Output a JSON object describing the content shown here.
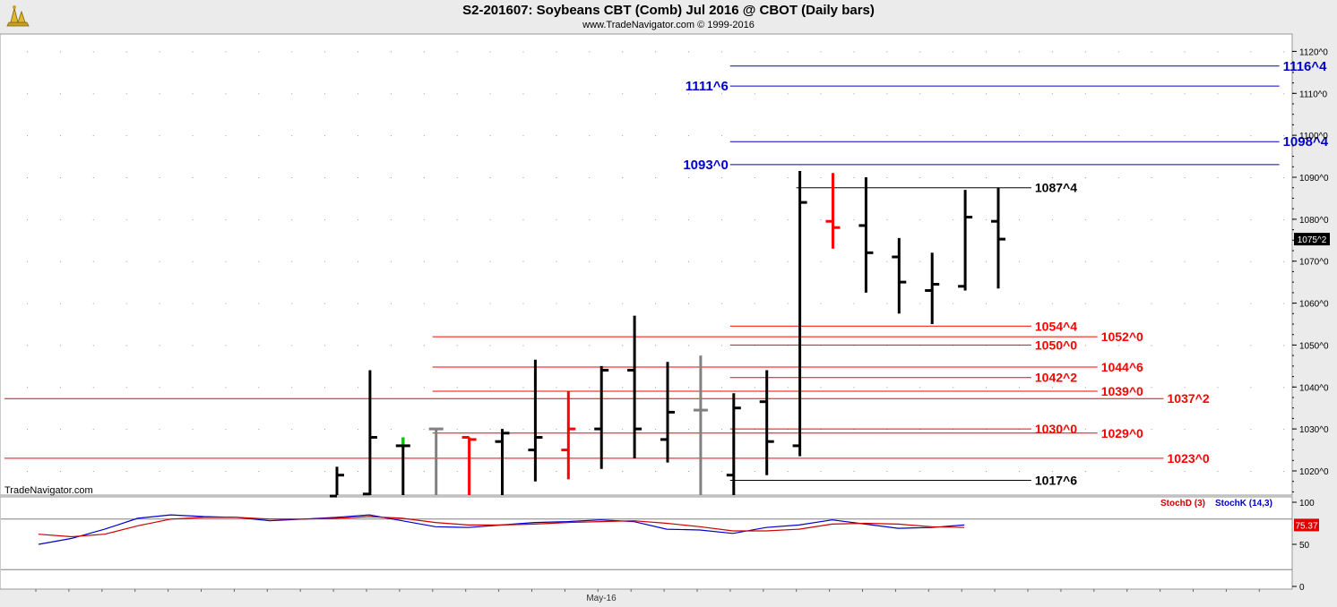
{
  "header": {
    "title": "S2-201607:  Soybeans CBT (Comb) Jul 2016 @ CBOT  (Daily bars)",
    "subtitle": "www.TradeNavigator.com © 1999-2016"
  },
  "watermark": "TradeNavigator.com",
  "colors": {
    "up": "#000000",
    "down": "#ff0000",
    "neutral": "#808080",
    "blue": "#0000cc",
    "red": "#ff0000",
    "black": "#000000",
    "stochK": "#0000cc",
    "stochD": "#cc0000"
  },
  "chart_data": [
    {
      "type": "ohlc",
      "ylim": [
        1012,
        1123
      ],
      "y_ticks": [
        1020,
        1030,
        1040,
        1050,
        1060,
        1070,
        1080,
        1090,
        1100,
        1110,
        1120
      ],
      "y_tick_labels": [
        "1020^0",
        "1030^0",
        "1040^0",
        "1050^0",
        "1060^0",
        "1070^0",
        "1080^0",
        "1090^0",
        "1100^0",
        "1110^0",
        "1120^0"
      ],
      "x_label": "May-16",
      "last_price_label": "1075^2",
      "last_price": 1075.25,
      "bars": [
        {
          "o": 1014,
          "h": 1021,
          "l": 1012,
          "c": 1019,
          "color": "up"
        },
        {
          "o": 1014.5,
          "h": 1044,
          "l": 1012,
          "c": 1028,
          "color": "up"
        },
        {
          "o": 1026,
          "h": 1028,
          "l": 1012,
          "c": 1026,
          "color": "up",
          "tick": "green"
        },
        {
          "o": 1030,
          "h": 1030,
          "l": 1012,
          "c": 1030,
          "color": "neutral"
        },
        {
          "o": 1028,
          "h": 1028,
          "l": 1012,
          "c": 1027.5,
          "color": "down"
        },
        {
          "o": 1027,
          "h": 1030,
          "l": 1012,
          "c": 1029,
          "color": "up"
        },
        {
          "o": 1025,
          "h": 1046.5,
          "l": 1017.5,
          "c": 1028,
          "color": "up"
        },
        {
          "o": 1025,
          "h": 1039,
          "l": 1018,
          "c": 1030,
          "color": "down"
        },
        {
          "o": 1030,
          "h": 1045,
          "l": 1020.5,
          "c": 1044,
          "color": "up"
        },
        {
          "o": 1044,
          "h": 1057,
          "l": 1023,
          "c": 1030,
          "color": "up"
        },
        {
          "o": 1027.5,
          "h": 1046,
          "l": 1022,
          "c": 1034,
          "color": "up"
        },
        {
          "o": 1034.5,
          "h": 1047.5,
          "l": 1012,
          "c": 1034.5,
          "color": "neutral"
        },
        {
          "o": 1019,
          "h": 1038.5,
          "l": 1012,
          "c": 1035,
          "color": "up"
        },
        {
          "o": 1036.5,
          "h": 1044,
          "l": 1019,
          "c": 1027,
          "color": "up"
        },
        {
          "o": 1026,
          "h": 1091.5,
          "l": 1023.5,
          "c": 1084,
          "color": "up"
        },
        {
          "o": 1079.5,
          "h": 1091,
          "l": 1073,
          "c": 1078,
          "color": "down"
        },
        {
          "o": 1078.5,
          "h": 1090,
          "l": 1062.5,
          "c": 1072,
          "color": "up"
        },
        {
          "o": 1071,
          "h": 1075.5,
          "l": 1057.5,
          "c": 1065,
          "color": "up"
        },
        {
          "o": 1063,
          "h": 1072,
          "l": 1055,
          "c": 1064.5,
          "color": "up"
        },
        {
          "o": 1064,
          "h": 1087,
          "l": 1063,
          "c": 1080.5,
          "color": "up"
        },
        {
          "o": 1079.5,
          "h": 1087.5,
          "l": 1063.5,
          "c": 1075.25,
          "color": "up"
        }
      ],
      "levels": [
        {
          "label": "1116^4",
          "price": 1116.5,
          "from_bar": 12,
          "to_bar": 28.5,
          "color": "blue",
          "label_pos": "right"
        },
        {
          "label": "1111^6",
          "price": 1111.75,
          "from_bar": 12,
          "to_bar": 28.5,
          "color": "blue",
          "label_pos": "left"
        },
        {
          "label": "1098^4",
          "price": 1098.5,
          "from_bar": 12,
          "to_bar": 28.5,
          "color": "blue",
          "label_pos": "right"
        },
        {
          "label": "1093^0",
          "price": 1093,
          "from_bar": 12,
          "to_bar": 28.5,
          "color": "blue",
          "label_pos": "left"
        },
        {
          "label": "1087^4",
          "price": 1087.5,
          "from_bar": 14,
          "to_bar": 21,
          "color": "black",
          "label_pos": "right"
        },
        {
          "label": "1054^4",
          "price": 1054.5,
          "from_bar": 12,
          "to_bar": 21,
          "color": "red",
          "label_pos": "right"
        },
        {
          "label": "1052^0",
          "price": 1052,
          "from_bar": 3,
          "to_bar": 23,
          "color": "red",
          "label_pos": "right"
        },
        {
          "label": "1050^0",
          "price": 1050,
          "from_bar": 12,
          "to_bar": 21,
          "color": "red",
          "label_pos": "right"
        },
        {
          "label": "1044^6",
          "price": 1044.75,
          "from_bar": 3,
          "to_bar": 23,
          "color": "red",
          "label_pos": "right"
        },
        {
          "label": "1042^2",
          "price": 1042.25,
          "from_bar": 12,
          "to_bar": 21,
          "color": "red",
          "label_pos": "right"
        },
        {
          "label": "1039^0",
          "price": 1039,
          "from_bar": 3,
          "to_bar": 23,
          "color": "red",
          "label_pos": "right"
        },
        {
          "label": "1037^2",
          "price": 1037.25,
          "from_bar": -10.1,
          "to_bar": 25,
          "color": "red",
          "label_pos": "right"
        },
        {
          "label": "1030^0",
          "price": 1030,
          "from_bar": 12,
          "to_bar": 21,
          "color": "red",
          "label_pos": "right"
        },
        {
          "label": "1029^0",
          "price": 1029,
          "from_bar": 3,
          "to_bar": 23,
          "color": "red",
          "label_pos": "right"
        },
        {
          "label": "1023^0",
          "price": 1023,
          "from_bar": -10.1,
          "to_bar": 25,
          "color": "red",
          "label_pos": "right"
        },
        {
          "label": "1017^6",
          "price": 1017.75,
          "from_bar": 12,
          "to_bar": 21,
          "color": "black",
          "label_pos": "right"
        }
      ]
    },
    {
      "type": "line",
      "ylim": [
        0,
        100
      ],
      "y_ticks": [
        0,
        50,
        100
      ],
      "y_tick_labels": [
        "0",
        "50",
        "100"
      ],
      "reference_lines": [
        80,
        20
      ],
      "last_value_label": "75.37",
      "legend": [
        "StochD (3)",
        "StochK (14,3)"
      ],
      "series": [
        {
          "name": "StochK (14,3)",
          "color": "stochK",
          "values": [
            50,
            57,
            68,
            81,
            85,
            83,
            82,
            78,
            80,
            82,
            85,
            78,
            71,
            70,
            73,
            76,
            77,
            79,
            77,
            68,
            67,
            63,
            70,
            73,
            79,
            74,
            69,
            70,
            73
          ]
        },
        {
          "name": "StochD (3)",
          "color": "stochD",
          "values": [
            62,
            59,
            62,
            72,
            80,
            82,
            82,
            80,
            80,
            81,
            83,
            81,
            76,
            73,
            73,
            74,
            76,
            77,
            78,
            75,
            71,
            66,
            66,
            68,
            74,
            75,
            74,
            71,
            70
          ]
        }
      ]
    }
  ]
}
